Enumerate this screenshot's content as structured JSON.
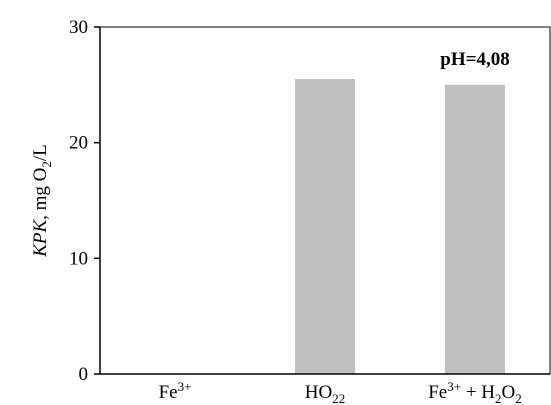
{
  "chart_data": {
    "type": "bar",
    "categories": [
      {
        "base": "Fe",
        "sup": "3+"
      },
      {
        "base": "H",
        "sub": "2",
        "rest": "O",
        "sub2": "2"
      },
      {
        "base": "Fe",
        "sup": "3+",
        "rest": " + H",
        "sub": "2",
        "rest2": "O",
        "sub2": "2"
      }
    ],
    "values": [
      0,
      25.5,
      25.0
    ],
    "ylabel": {
      "italic": "KPK",
      "mid": ", mg O",
      "sub": "2",
      "end": "/L"
    },
    "yticks": [
      0,
      10,
      20,
      30
    ],
    "ylim": [
      0,
      30
    ],
    "bar_color": "#bfbfbf",
    "annotations": [
      {
        "text": "pH=4,08",
        "category_index": 2
      }
    ],
    "grid": false
  }
}
